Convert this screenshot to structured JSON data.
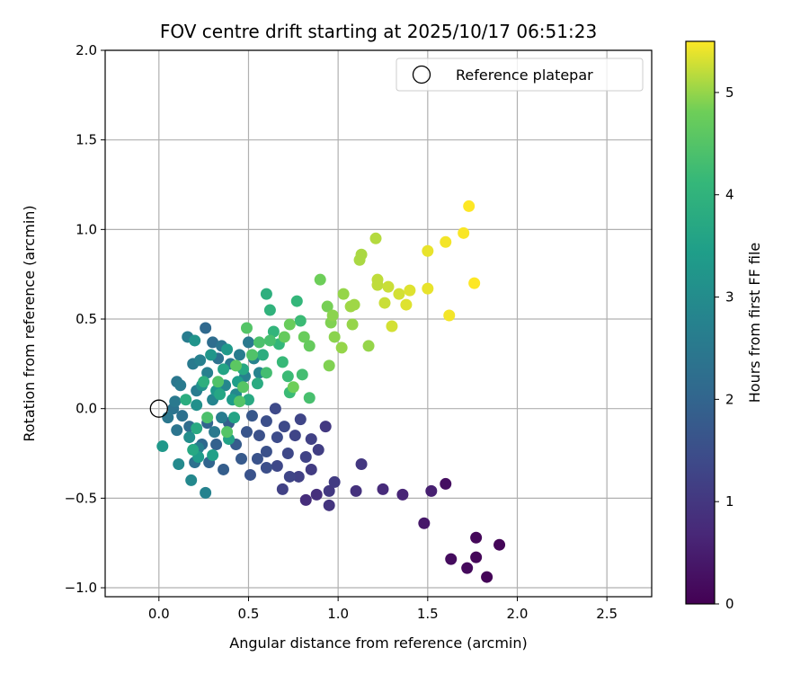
{
  "chart_data": {
    "type": "scatter",
    "title": "FOV centre drift starting at 2025/10/17 06:51:23",
    "xlabel": "Angular distance from reference (arcmin)",
    "ylabel": "Rotation from reference (arcmin)",
    "xlim": [
      -0.3,
      2.75
    ],
    "ylim": [
      -1.05,
      2.0
    ],
    "xticks": [
      0.0,
      0.5,
      1.0,
      1.5,
      2.0,
      2.5
    ],
    "xtick_labels": [
      "0.0",
      "0.5",
      "1.0",
      "1.5",
      "2.0",
      "2.5"
    ],
    "yticks": [
      -1.0,
      -0.5,
      0.0,
      0.5,
      1.0,
      1.5,
      2.0
    ],
    "ytick_labels": [
      "−1.0",
      "−0.5",
      "0.0",
      "0.5",
      "1.0",
      "1.5",
      "2.0"
    ],
    "grid": true,
    "legend": {
      "placement": "top-right",
      "entries": [
        {
          "label": "Reference platepar",
          "marker": "open-circle",
          "color": "#000000"
        }
      ]
    },
    "reference_point": {
      "x": 0.0,
      "y": 0.0
    },
    "colorbar": {
      "label": "Hours from first FF file",
      "range": [
        0,
        5.5
      ],
      "ticks": [
        0,
        1,
        2,
        3,
        4,
        5
      ],
      "tick_labels": [
        "0",
        "1",
        "2",
        "3",
        "4",
        "5"
      ],
      "colormap": "viridis"
    },
    "points": [
      {
        "x": 1.83,
        "y": -0.94,
        "t": 0.05
      },
      {
        "x": 1.72,
        "y": -0.89,
        "t": 0.15
      },
      {
        "x": 1.63,
        "y": -0.84,
        "t": 0.2
      },
      {
        "x": 1.77,
        "y": -0.83,
        "t": 0.1
      },
      {
        "x": 1.77,
        "y": -0.72,
        "t": 0.12
      },
      {
        "x": 1.9,
        "y": -0.76,
        "t": 0.08
      },
      {
        "x": 1.6,
        "y": -0.42,
        "t": 0.25
      },
      {
        "x": 1.48,
        "y": -0.64,
        "t": 0.4
      },
      {
        "x": 1.52,
        "y": -0.46,
        "t": 0.55
      },
      {
        "x": 1.36,
        "y": -0.48,
        "t": 0.65
      },
      {
        "x": 1.25,
        "y": -0.45,
        "t": 0.75
      },
      {
        "x": 1.1,
        "y": -0.46,
        "t": 0.9
      },
      {
        "x": 1.13,
        "y": -0.31,
        "t": 1.0
      },
      {
        "x": 0.95,
        "y": -0.54,
        "t": 0.95
      },
      {
        "x": 0.95,
        "y": -0.46,
        "t": 1.05
      },
      {
        "x": 0.98,
        "y": -0.41,
        "t": 1.1
      },
      {
        "x": 0.88,
        "y": -0.48,
        "t": 0.85
      },
      {
        "x": 0.82,
        "y": -0.51,
        "t": 0.8
      },
      {
        "x": 0.85,
        "y": -0.34,
        "t": 1.1
      },
      {
        "x": 0.89,
        "y": -0.23,
        "t": 1.15
      },
      {
        "x": 0.93,
        "y": -0.1,
        "t": 1.05
      },
      {
        "x": 0.78,
        "y": -0.38,
        "t": 1.2
      },
      {
        "x": 0.82,
        "y": -0.27,
        "t": 1.25
      },
      {
        "x": 0.85,
        "y": -0.17,
        "t": 1.2
      },
      {
        "x": 0.79,
        "y": -0.06,
        "t": 1.3
      },
      {
        "x": 0.76,
        "y": -0.15,
        "t": 1.3
      },
      {
        "x": 0.72,
        "y": -0.25,
        "t": 1.35
      },
      {
        "x": 0.73,
        "y": -0.38,
        "t": 1.3
      },
      {
        "x": 0.69,
        "y": -0.45,
        "t": 1.2
      },
      {
        "x": 0.66,
        "y": -0.32,
        "t": 1.35
      },
      {
        "x": 0.7,
        "y": -0.1,
        "t": 1.4
      },
      {
        "x": 0.66,
        "y": -0.16,
        "t": 1.45
      },
      {
        "x": 0.65,
        "y": 0.0,
        "t": 1.4
      },
      {
        "x": 0.6,
        "y": -0.07,
        "t": 1.5
      },
      {
        "x": 0.6,
        "y": -0.24,
        "t": 1.55
      },
      {
        "x": 0.6,
        "y": -0.33,
        "t": 1.5
      },
      {
        "x": 0.56,
        "y": -0.15,
        "t": 1.55
      },
      {
        "x": 0.55,
        "y": -0.28,
        "t": 1.6
      },
      {
        "x": 0.51,
        "y": -0.37,
        "t": 1.6
      },
      {
        "x": 0.49,
        "y": -0.13,
        "t": 1.65
      },
      {
        "x": 0.46,
        "y": -0.28,
        "t": 1.75
      },
      {
        "x": 0.52,
        "y": -0.04,
        "t": 1.7
      },
      {
        "x": 0.43,
        "y": -0.2,
        "t": 1.8
      },
      {
        "x": 0.39,
        "y": -0.08,
        "t": 1.85
      },
      {
        "x": 0.36,
        "y": -0.34,
        "t": 1.85
      },
      {
        "x": 0.32,
        "y": -0.2,
        "t": 1.9
      },
      {
        "x": 0.28,
        "y": -0.3,
        "t": 2.0
      },
      {
        "x": 0.27,
        "y": -0.08,
        "t": 2.0
      },
      {
        "x": 0.24,
        "y": -0.2,
        "t": 2.1
      },
      {
        "x": 0.2,
        "y": -0.3,
        "t": 2.3
      },
      {
        "x": 0.17,
        "y": -0.1,
        "t": 2.2
      },
      {
        "x": 0.13,
        "y": -0.04,
        "t": 2.3
      },
      {
        "x": 0.1,
        "y": -0.12,
        "t": 2.4
      },
      {
        "x": 0.08,
        "y": 0.0,
        "t": 2.35
      },
      {
        "x": 0.05,
        "y": -0.05,
        "t": 2.45
      },
      {
        "x": 0.09,
        "y": 0.04,
        "t": 2.5
      },
      {
        "x": 0.1,
        "y": 0.15,
        "t": 2.45
      },
      {
        "x": 0.12,
        "y": 0.13,
        "t": 2.55
      },
      {
        "x": 0.16,
        "y": 0.4,
        "t": 2.6
      },
      {
        "x": 0.19,
        "y": 0.25,
        "t": 2.55
      },
      {
        "x": 0.21,
        "y": 0.1,
        "t": 2.6
      },
      {
        "x": 0.23,
        "y": 0.27,
        "t": 2.7
      },
      {
        "x": 0.26,
        "y": 0.45,
        "t": 2.1
      },
      {
        "x": 0.27,
        "y": 0.2,
        "t": 2.7
      },
      {
        "x": 0.3,
        "y": 0.37,
        "t": 2.2
      },
      {
        "x": 0.3,
        "y": 0.05,
        "t": 2.8
      },
      {
        "x": 0.33,
        "y": 0.28,
        "t": 2.3
      },
      {
        "x": 0.35,
        "y": 0.35,
        "t": 2.4
      },
      {
        "x": 0.37,
        "y": 0.13,
        "t": 2.85
      },
      {
        "x": 0.4,
        "y": 0.25,
        "t": 2.5
      },
      {
        "x": 0.43,
        "y": 0.08,
        "t": 2.9
      },
      {
        "x": 0.45,
        "y": 0.3,
        "t": 2.6
      },
      {
        "x": 0.48,
        "y": 0.18,
        "t": 2.7
      },
      {
        "x": 0.5,
        "y": 0.37,
        "t": 2.5
      },
      {
        "x": 0.53,
        "y": 0.28,
        "t": 2.75
      },
      {
        "x": 0.56,
        "y": 0.2,
        "t": 2.8
      },
      {
        "x": 0.35,
        "y": -0.05,
        "t": 2.6
      },
      {
        "x": 0.31,
        "y": -0.13,
        "t": 2.5
      },
      {
        "x": 0.22,
        "y": -0.22,
        "t": 2.65
      },
      {
        "x": 0.18,
        "y": -0.4,
        "t": 2.9
      },
      {
        "x": 0.26,
        "y": -0.47,
        "t": 2.75
      },
      {
        "x": 0.11,
        "y": -0.31,
        "t": 2.95
      },
      {
        "x": 0.02,
        "y": -0.21,
        "t": 3.3
      },
      {
        "x": 0.17,
        "y": -0.16,
        "t": 3.05
      },
      {
        "x": 0.21,
        "y": 0.02,
        "t": 3.1
      },
      {
        "x": 0.24,
        "y": 0.13,
        "t": 3.15
      },
      {
        "x": 0.2,
        "y": 0.38,
        "t": 3.2
      },
      {
        "x": 0.29,
        "y": 0.3,
        "t": 3.25
      },
      {
        "x": 0.32,
        "y": 0.1,
        "t": 3.3
      },
      {
        "x": 0.38,
        "y": 0.33,
        "t": 3.35
      },
      {
        "x": 0.41,
        "y": 0.05,
        "t": 3.4
      },
      {
        "x": 0.44,
        "y": 0.15,
        "t": 3.45
      },
      {
        "x": 0.22,
        "y": -0.27,
        "t": 3.4
      },
      {
        "x": 0.3,
        "y": -0.26,
        "t": 3.5
      },
      {
        "x": 0.39,
        "y": -0.17,
        "t": 3.55
      },
      {
        "x": 0.42,
        "y": -0.05,
        "t": 3.6
      },
      {
        "x": 0.36,
        "y": 0.22,
        "t": 3.6
      },
      {
        "x": 0.34,
        "y": 0.08,
        "t": 3.65
      },
      {
        "x": 0.47,
        "y": 0.22,
        "t": 3.7
      },
      {
        "x": 0.5,
        "y": 0.05,
        "t": 3.75
      },
      {
        "x": 0.55,
        "y": 0.14,
        "t": 3.8
      },
      {
        "x": 0.58,
        "y": 0.3,
        "t": 3.85
      },
      {
        "x": 0.6,
        "y": 0.64,
        "t": 3.9
      },
      {
        "x": 0.62,
        "y": 0.55,
        "t": 4.0
      },
      {
        "x": 0.64,
        "y": 0.43,
        "t": 4.05
      },
      {
        "x": 0.67,
        "y": 0.36,
        "t": 4.1
      },
      {
        "x": 0.69,
        "y": 0.26,
        "t": 4.15
      },
      {
        "x": 0.72,
        "y": 0.18,
        "t": 4.2
      },
      {
        "x": 0.73,
        "y": 0.09,
        "t": 4.2
      },
      {
        "x": 0.77,
        "y": 0.6,
        "t": 4.1
      },
      {
        "x": 0.79,
        "y": 0.49,
        "t": 4.2
      },
      {
        "x": 0.8,
        "y": 0.19,
        "t": 4.3
      },
      {
        "x": 0.84,
        "y": 0.06,
        "t": 4.35
      },
      {
        "x": 0.6,
        "y": 0.2,
        "t": 4.3
      },
      {
        "x": 0.62,
        "y": 0.38,
        "t": 4.35
      },
      {
        "x": 0.49,
        "y": 0.45,
        "t": 4.5
      },
      {
        "x": 0.52,
        "y": 0.3,
        "t": 4.45
      },
      {
        "x": 0.56,
        "y": 0.37,
        "t": 4.4
      },
      {
        "x": 0.45,
        "y": 0.04,
        "t": 4.5
      },
      {
        "x": 0.38,
        "y": -0.13,
        "t": 4.5
      },
      {
        "x": 0.43,
        "y": 0.24,
        "t": 4.6
      },
      {
        "x": 0.47,
        "y": 0.12,
        "t": 4.55
      },
      {
        "x": 0.33,
        "y": 0.15,
        "t": 4.45
      },
      {
        "x": 0.27,
        "y": -0.05,
        "t": 4.4
      },
      {
        "x": 0.25,
        "y": 0.15,
        "t": 3.9
      },
      {
        "x": 0.15,
        "y": 0.05,
        "t": 3.85
      },
      {
        "x": 0.19,
        "y": -0.23,
        "t": 3.7
      },
      {
        "x": 0.21,
        "y": -0.11,
        "t": 3.75
      },
      {
        "x": 0.7,
        "y": 0.4,
        "t": 4.7
      },
      {
        "x": 0.73,
        "y": 0.47,
        "t": 4.75
      },
      {
        "x": 0.75,
        "y": 0.12,
        "t": 4.8
      },
      {
        "x": 0.81,
        "y": 0.4,
        "t": 4.75
      },
      {
        "x": 0.84,
        "y": 0.35,
        "t": 4.7
      },
      {
        "x": 0.9,
        "y": 0.72,
        "t": 4.8
      },
      {
        "x": 0.94,
        "y": 0.57,
        "t": 4.85
      },
      {
        "x": 0.95,
        "y": 0.24,
        "t": 4.9
      },
      {
        "x": 0.96,
        "y": 0.48,
        "t": 4.9
      },
      {
        "x": 0.98,
        "y": 0.4,
        "t": 4.95
      },
      {
        "x": 0.97,
        "y": 0.52,
        "t": 4.95
      },
      {
        "x": 1.02,
        "y": 0.34,
        "t": 5.0
      },
      {
        "x": 1.03,
        "y": 0.64,
        "t": 5.0
      },
      {
        "x": 1.07,
        "y": 0.57,
        "t": 5.05
      },
      {
        "x": 1.08,
        "y": 0.47,
        "t": 5.0
      },
      {
        "x": 1.09,
        "y": 0.58,
        "t": 5.05
      },
      {
        "x": 1.12,
        "y": 0.83,
        "t": 5.1
      },
      {
        "x": 1.13,
        "y": 0.86,
        "t": 5.1
      },
      {
        "x": 1.17,
        "y": 0.35,
        "t": 5.0
      },
      {
        "x": 1.21,
        "y": 0.95,
        "t": 5.15
      },
      {
        "x": 1.22,
        "y": 0.69,
        "t": 5.2
      },
      {
        "x": 1.22,
        "y": 0.72,
        "t": 5.2
      },
      {
        "x": 1.26,
        "y": 0.59,
        "t": 5.25
      },
      {
        "x": 1.28,
        "y": 0.68,
        "t": 5.25
      },
      {
        "x": 1.3,
        "y": 0.46,
        "t": 5.3
      },
      {
        "x": 1.34,
        "y": 0.64,
        "t": 5.3
      },
      {
        "x": 1.38,
        "y": 0.58,
        "t": 5.35
      },
      {
        "x": 1.4,
        "y": 0.66,
        "t": 5.35
      },
      {
        "x": 1.5,
        "y": 0.67,
        "t": 5.4
      },
      {
        "x": 1.5,
        "y": 0.88,
        "t": 5.4
      },
      {
        "x": 1.6,
        "y": 0.93,
        "t": 5.45
      },
      {
        "x": 1.62,
        "y": 0.52,
        "t": 5.45
      },
      {
        "x": 1.7,
        "y": 0.98,
        "t": 5.48
      },
      {
        "x": 1.73,
        "y": 1.13,
        "t": 5.5
      },
      {
        "x": 1.76,
        "y": 0.7,
        "t": 5.5
      }
    ]
  }
}
